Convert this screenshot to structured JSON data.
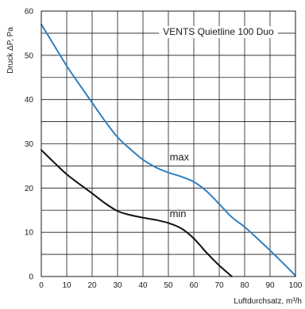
{
  "chart_data": {
    "type": "line",
    "title": "VENTS Quietline 100 Duo",
    "xlabel": "Luftdurchsatz, m³/h",
    "ylabel": "Druck ΔP, Pa",
    "xlim": [
      0,
      100
    ],
    "ylim": [
      0,
      60
    ],
    "x_ticks": [
      "0",
      "10",
      "20",
      "30",
      "40",
      "50",
      "60",
      "70",
      "80",
      "90",
      "100"
    ],
    "y_ticks": [
      "0",
      "10",
      "20",
      "30",
      "40",
      "50",
      "60"
    ],
    "grid": true,
    "series": [
      {
        "name": "max",
        "color": "#2f7fc1",
        "x": [
          0,
          5,
          10,
          15,
          20,
          25,
          30,
          35,
          40,
          45,
          50,
          55,
          60,
          65,
          70,
          75,
          80,
          85,
          90,
          95,
          100
        ],
        "y": [
          57,
          52.3,
          47.6,
          43.4,
          39.3,
          35.2,
          31.5,
          28.8,
          26.4,
          24.7,
          23.5,
          22.6,
          21.4,
          19.3,
          16.4,
          13.4,
          11.2,
          8.6,
          5.9,
          3.1,
          0.2
        ]
      },
      {
        "name": "min",
        "color": "#111111",
        "x": [
          0,
          5,
          10,
          15,
          20,
          25,
          30,
          35,
          40,
          45,
          50,
          55,
          60,
          65,
          70,
          75
        ],
        "y": [
          28.6,
          25.8,
          23.1,
          20.9,
          18.8,
          16.6,
          14.8,
          13.9,
          13.3,
          12.8,
          12.1,
          10.9,
          8.6,
          5.4,
          2.5,
          0
        ]
      }
    ],
    "series_label_positions": [
      {
        "name": "max",
        "x": 50.5,
        "y": 26.2
      },
      {
        "name": "min",
        "x": 50.5,
        "y": 13.4
      }
    ]
  }
}
